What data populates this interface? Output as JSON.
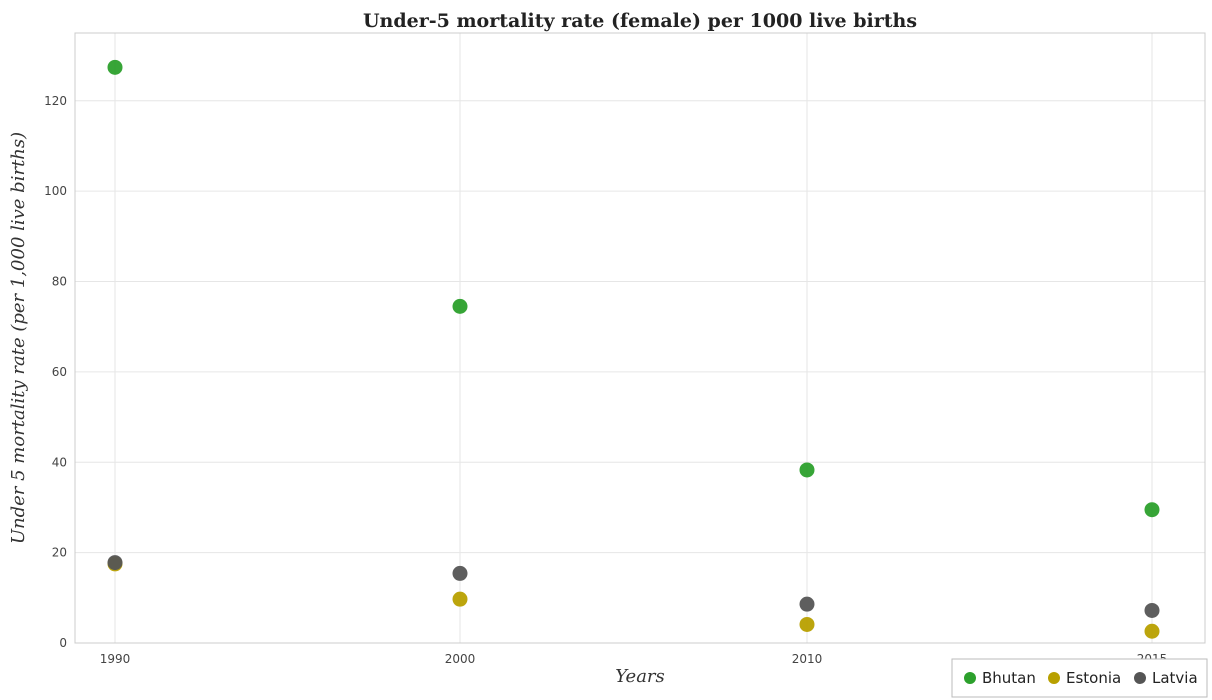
{
  "chart_data": {
    "type": "scatter",
    "title": "Under-5 mortality rate (female) per 1000 live births",
    "xlabel": "Years",
    "ylabel": "Under 5 mortality rate (per 1,000 live births)",
    "categories": [
      "1990",
      "2000",
      "2010",
      "2015"
    ],
    "ylim": [
      0,
      135
    ],
    "yticks": [
      0,
      20,
      40,
      60,
      80,
      100,
      120
    ],
    "grid": true,
    "legend_position": "bottom-right",
    "series": [
      {
        "name": "Bhutan",
        "color": "#2ca02c",
        "values": [
          127.4,
          74.5,
          38.3,
          29.5
        ]
      },
      {
        "name": "Estonia",
        "color": "#b8a000",
        "values": [
          17.5,
          9.7,
          4.1,
          2.6
        ]
      },
      {
        "name": "Latvia",
        "color": "#555555",
        "values": [
          17.8,
          15.4,
          8.6,
          7.2
        ]
      }
    ]
  }
}
